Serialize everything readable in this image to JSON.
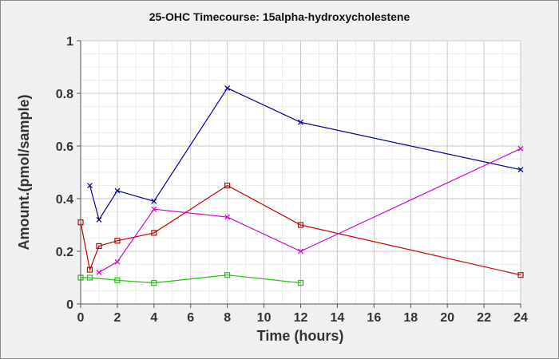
{
  "chart_data": {
    "type": "line",
    "title": "25-OHC Timecourse: 15alpha-hydroxycholestene",
    "xlabel": "Time (hours)",
    "ylabel": "Amount.(pmol/sample)",
    "xlim": [
      0,
      24
    ],
    "ylim": [
      0,
      1
    ],
    "xticks": [
      0,
      2,
      4,
      6,
      8,
      10,
      12,
      14,
      16,
      18,
      20,
      22,
      24
    ],
    "yticks": [
      0,
      0.2,
      0.4,
      0.6,
      0.8,
      1
    ],
    "ytick_labels": [
      "0",
      "0.2",
      "0.4",
      "0.6",
      "0.8",
      "1"
    ],
    "grid": true,
    "series": [
      {
        "name": "blue",
        "color": "#00009c",
        "marker": "x",
        "x": [
          0.5,
          1,
          2,
          4,
          8,
          12,
          24
        ],
        "y": [
          0.45,
          0.32,
          0.43,
          0.39,
          0.82,
          0.69,
          0.51
        ]
      },
      {
        "name": "red",
        "color": "#c80000",
        "marker": "square",
        "x": [
          0,
          0.5,
          1,
          2,
          4,
          8,
          12,
          24
        ],
        "y": [
          0.31,
          0.13,
          0.22,
          0.24,
          0.27,
          0.45,
          0.3,
          0.11
        ]
      },
      {
        "name": "magenta",
        "color": "#d200d2",
        "marker": "x",
        "x": [
          1,
          2,
          4,
          8,
          12,
          24
        ],
        "y": [
          0.12,
          0.16,
          0.36,
          0.33,
          0.2,
          0.59
        ]
      },
      {
        "name": "green",
        "color": "#19c800",
        "marker": "square",
        "x": [
          0,
          0.5,
          2,
          4,
          8,
          12
        ],
        "y": [
          0.1,
          0.1,
          0.09,
          0.08,
          0.11,
          0.08
        ]
      }
    ]
  }
}
